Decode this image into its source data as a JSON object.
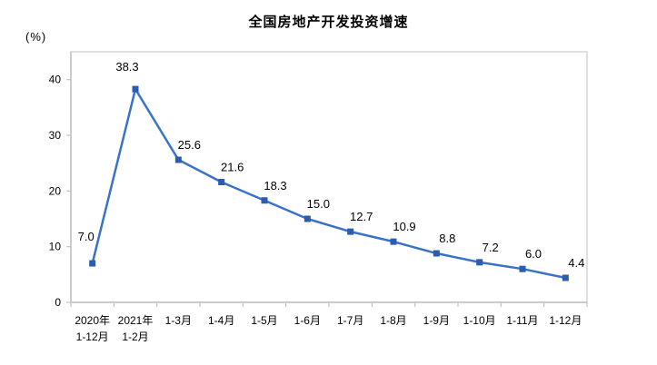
{
  "title": "全国房地产开发投资增速",
  "y_axis_unit": "(%)",
  "chart_data": {
    "type": "line",
    "title": "全国房地产开发投资增速",
    "ylabel": "(%)",
    "xlabel": "",
    "categories": [
      "2020年\n1-12月",
      "2021年\n1-2月",
      "1-3月",
      "1-4月",
      "1-5月",
      "1-6月",
      "1-7月",
      "1-8月",
      "1-9月",
      "1-10月",
      "1-11月",
      "1-12月"
    ],
    "values": [
      7.0,
      38.3,
      25.6,
      21.6,
      18.3,
      15.0,
      12.7,
      10.9,
      8.8,
      7.2,
      6.0,
      4.4
    ],
    "data_labels": [
      "7.0",
      "38.3",
      "25.6",
      "21.6",
      "18.3",
      "15.0",
      "12.7",
      "10.9",
      "8.8",
      "7.2",
      "6.0",
      "4.4"
    ],
    "ylim": [
      0,
      45
    ],
    "yticks": [
      0,
      10,
      20,
      30,
      40
    ],
    "grid": false,
    "legend_position": "none",
    "line_color": "#3a73c6",
    "marker_color": "#2b5cad",
    "marker_shape": "square",
    "axis_color": "#c2c2c2",
    "border_color": "#d6d6d6",
    "text_color": "#000000"
  }
}
